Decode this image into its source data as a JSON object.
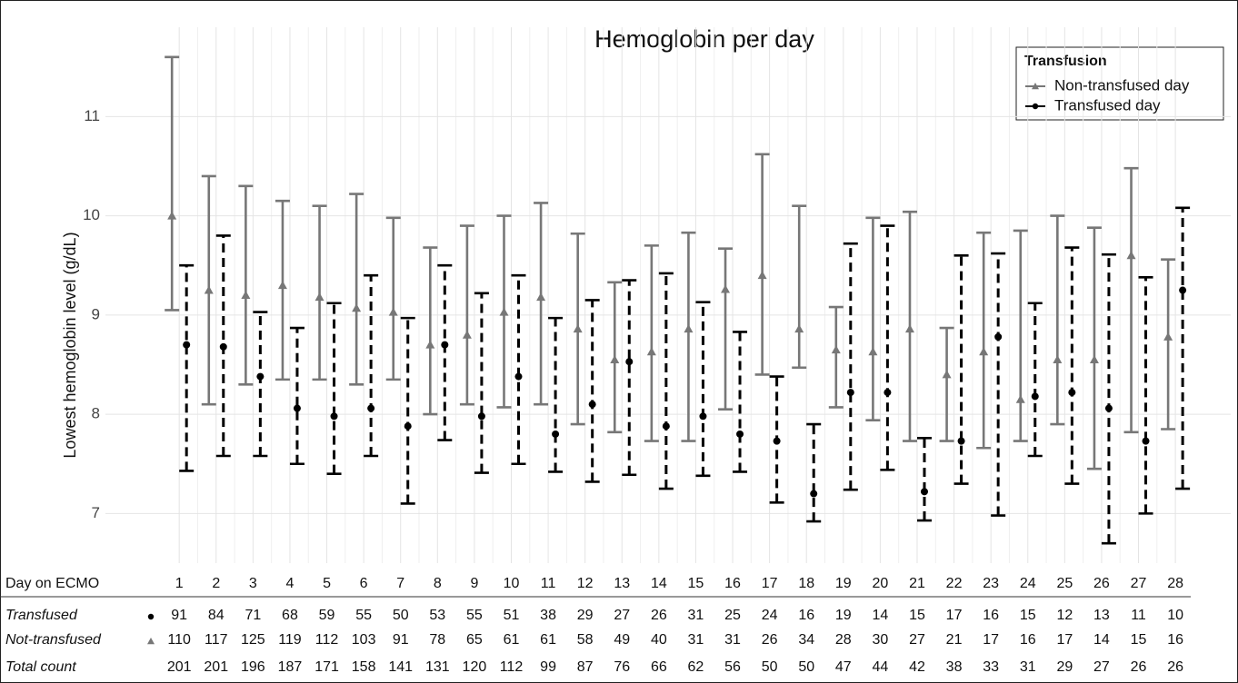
{
  "chart_data": {
    "type": "errorbar",
    "title": "Hemoglobin per day",
    "y_label": "Lowest hemoglobin level (g/dL)",
    "x": [
      1,
      2,
      3,
      4,
      5,
      6,
      7,
      8,
      9,
      10,
      11,
      12,
      13,
      14,
      15,
      16,
      17,
      18,
      19,
      20,
      21,
      22,
      23,
      24,
      25,
      26,
      27,
      28
    ],
    "xlim": [
      -1,
      29.5
    ],
    "xticks": [
      1,
      2,
      3,
      4,
      5,
      6,
      7,
      8,
      9,
      10,
      11,
      12,
      13,
      14,
      15,
      16,
      17,
      18,
      19,
      20,
      21,
      22,
      23,
      24,
      25,
      26,
      27,
      28
    ],
    "ylim": [
      6.5,
      11.9
    ],
    "yticks": [
      7,
      8,
      9,
      10,
      11
    ],
    "grid": true,
    "legend_title": "Transfusion",
    "legend": "top-right",
    "series": [
      {
        "name": "Non-transfused day",
        "color": "#777777",
        "marker": "triangle",
        "dashed": false,
        "values": [
          10.0,
          9.25,
          9.2,
          9.3,
          9.18,
          9.07,
          9.03,
          8.7,
          8.8,
          9.03,
          9.18,
          8.86,
          8.55,
          8.63,
          8.86,
          9.26,
          9.4,
          8.86,
          8.65,
          8.63,
          8.86,
          8.4,
          8.63,
          8.15,
          8.55,
          8.55,
          9.6,
          8.78
        ],
        "lower": [
          9.05,
          8.1,
          8.3,
          8.35,
          8.35,
          8.3,
          8.35,
          8.0,
          8.1,
          8.07,
          8.1,
          7.9,
          7.82,
          7.73,
          7.73,
          8.05,
          8.4,
          8.47,
          8.07,
          7.94,
          7.73,
          7.73,
          7.66,
          7.73,
          7.9,
          7.45,
          7.82,
          7.85
        ],
        "upper": [
          11.6,
          10.4,
          10.3,
          10.15,
          10.1,
          10.22,
          9.98,
          9.68,
          9.9,
          10.0,
          10.13,
          9.82,
          9.33,
          9.7,
          9.83,
          9.67,
          10.62,
          10.1,
          9.08,
          9.98,
          10.04,
          8.87,
          9.83,
          9.85,
          10.0,
          9.88,
          10.48,
          9.56
        ]
      },
      {
        "name": "Transfused day",
        "color": "#000000",
        "marker": "circle",
        "dashed": true,
        "values": [
          8.7,
          8.68,
          8.38,
          8.06,
          7.98,
          8.06,
          7.88,
          8.7,
          7.98,
          8.38,
          7.8,
          8.1,
          8.53,
          7.88,
          7.98,
          7.8,
          7.73,
          7.2,
          8.22,
          8.22,
          7.22,
          7.73,
          8.78,
          8.18,
          8.22,
          8.06,
          7.73,
          9.25
        ],
        "lower": [
          7.43,
          7.58,
          7.58,
          7.5,
          7.4,
          7.58,
          7.1,
          7.74,
          7.41,
          7.5,
          7.42,
          7.32,
          7.39,
          7.25,
          7.38,
          7.42,
          7.11,
          6.92,
          7.24,
          7.44,
          6.93,
          7.3,
          6.98,
          7.58,
          7.3,
          6.7,
          7.0,
          7.25
        ],
        "upper": [
          9.5,
          9.8,
          9.03,
          8.87,
          9.12,
          9.4,
          8.97,
          9.5,
          9.22,
          9.4,
          8.97,
          9.15,
          9.35,
          9.42,
          9.13,
          8.83,
          8.38,
          7.9,
          9.72,
          9.9,
          7.76,
          9.6,
          9.62,
          9.12,
          9.68,
          9.61,
          9.38,
          10.08
        ]
      }
    ]
  },
  "table": {
    "header": "Day on ECMO",
    "rows": [
      {
        "label": "Transfused",
        "values": [
          91,
          84,
          71,
          68,
          59,
          55,
          50,
          53,
          55,
          51,
          38,
          29,
          27,
          26,
          31,
          25,
          24,
          16,
          19,
          14,
          15,
          17,
          16,
          15,
          12,
          13,
          11,
          10
        ]
      },
      {
        "label": "Not-transfused",
        "values": [
          110,
          117,
          125,
          119,
          112,
          103,
          91,
          78,
          65,
          61,
          61,
          58,
          49,
          40,
          31,
          31,
          26,
          34,
          28,
          30,
          27,
          21,
          17,
          16,
          17,
          14,
          15,
          16
        ]
      },
      {
        "label": "Total count",
        "values": [
          201,
          201,
          196,
          187,
          171,
          158,
          141,
          131,
          120,
          112,
          99,
          87,
          76,
          66,
          62,
          56,
          50,
          50,
          47,
          44,
          42,
          38,
          33,
          31,
          29,
          27,
          26,
          26
        ]
      }
    ]
  }
}
